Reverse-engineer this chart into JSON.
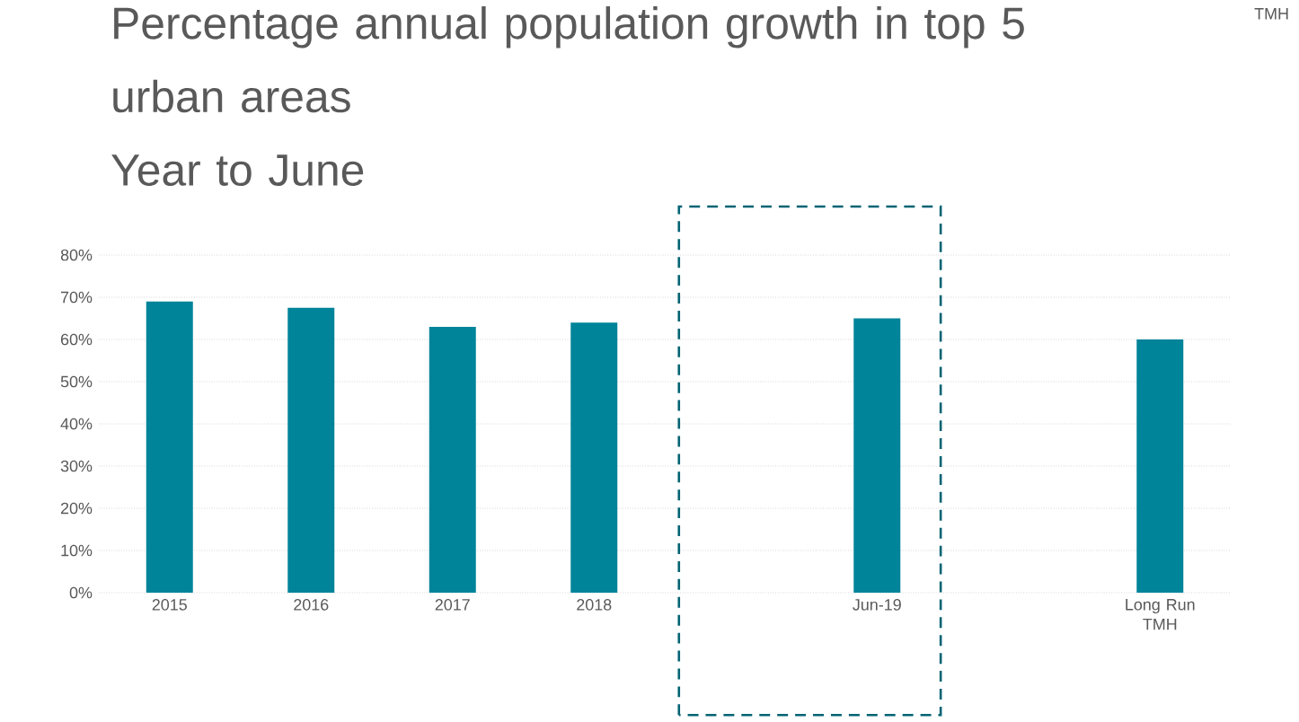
{
  "chart_data": {
    "type": "bar",
    "title": "Percentage annual population growth in top 5 urban areas",
    "subtitle": "Year to June",
    "categories": [
      "2015",
      "2016",
      "2017",
      "2018",
      null,
      "Jun-19",
      null,
      "Long Run TMH"
    ],
    "values": [
      69,
      67.5,
      63,
      64,
      null,
      65,
      null,
      60
    ],
    "color": "#00849a",
    "ylim": [
      0,
      80
    ],
    "yticks": [
      {
        "value": 0,
        "label": "0%"
      },
      {
        "value": 10,
        "label": "10%"
      },
      {
        "value": 20,
        "label": "20%"
      },
      {
        "value": 30,
        "label": "30%"
      },
      {
        "value": 40,
        "label": "40%"
      },
      {
        "value": 50,
        "label": "50%"
      },
      {
        "value": 60,
        "label": "60%"
      },
      {
        "value": 70,
        "label": "70%"
      },
      {
        "value": 80,
        "label": "80%"
      }
    ],
    "grid": "y",
    "legend": false,
    "annotations": [
      "TMH"
    ]
  }
}
